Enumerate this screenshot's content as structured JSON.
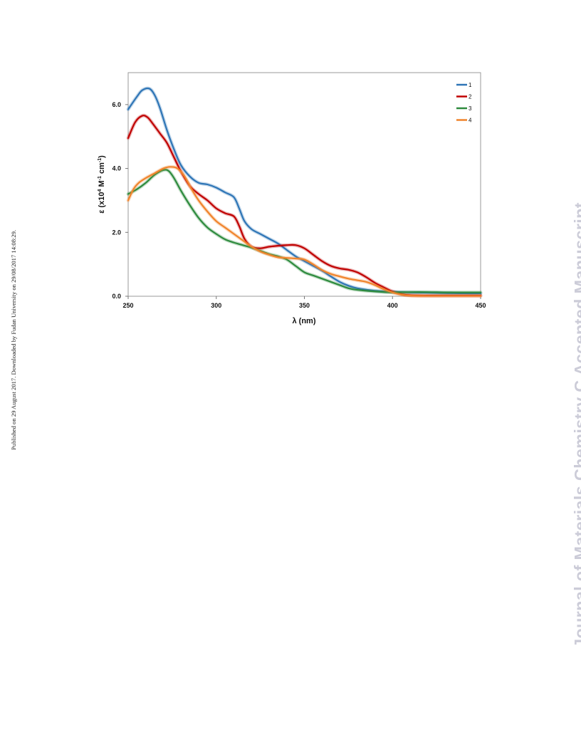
{
  "side_note": "Published on 29 August 2017. Downloaded by Fudan University on 29/08/2017 14:08:29.",
  "watermark": "Journal of Materials Chemistry C Accepted Manuscript",
  "chart_data": {
    "type": "line",
    "xlabel": "λ (nm)",
    "ylabel_parts": {
      "base": "ε (x10",
      "exp1": "4",
      "mid": " M",
      "exp2": "-1",
      "mid2": " cm",
      "exp3": "-1",
      "end": ")"
    },
    "xlim": [
      250,
      450
    ],
    "ylim": [
      0,
      7.0
    ],
    "xticks": [
      250,
      300,
      350,
      400,
      450
    ],
    "xtick_labels": [
      "250",
      "300",
      "350",
      "400",
      "450"
    ],
    "yticks": [
      0,
      2,
      4,
      6
    ],
    "ytick_labels": [
      "0.0",
      "2.0",
      "4.0",
      "6.0"
    ],
    "grid": false,
    "legend_position": "top-right",
    "series": [
      {
        "name": "1",
        "color": "#2e75b6",
        "x": [
          250,
          255,
          258,
          262,
          265,
          268,
          272,
          276,
          280,
          285,
          290,
          295,
          300,
          305,
          310,
          313,
          316,
          320,
          325,
          330,
          335,
          340,
          345,
          350,
          355,
          360,
          365,
          370,
          375,
          380,
          390,
          400,
          410,
          420,
          430,
          440,
          450
        ],
        "y": [
          5.85,
          6.25,
          6.45,
          6.5,
          6.3,
          5.9,
          5.2,
          4.6,
          4.1,
          3.75,
          3.55,
          3.5,
          3.4,
          3.25,
          3.1,
          2.75,
          2.35,
          2.1,
          1.95,
          1.8,
          1.65,
          1.45,
          1.25,
          1.1,
          0.95,
          0.8,
          0.62,
          0.45,
          0.33,
          0.25,
          0.17,
          0.14,
          0.12,
          0.11,
          0.1,
          0.09,
          0.09
        ]
      },
      {
        "name": "2",
        "color": "#c00000",
        "x": [
          250,
          254,
          258,
          261,
          264,
          268,
          272,
          276,
          280,
          285,
          290,
          295,
          300,
          305,
          310,
          313,
          316,
          320,
          325,
          330,
          335,
          340,
          345,
          350,
          355,
          360,
          365,
          370,
          375,
          380,
          385,
          390,
          395,
          400,
          405,
          410,
          420,
          430,
          440,
          450
        ],
        "y": [
          4.95,
          5.45,
          5.65,
          5.6,
          5.4,
          5.1,
          4.8,
          4.35,
          3.9,
          3.45,
          3.2,
          3.0,
          2.75,
          2.6,
          2.5,
          2.2,
          1.8,
          1.55,
          1.5,
          1.55,
          1.58,
          1.6,
          1.6,
          1.5,
          1.3,
          1.1,
          0.95,
          0.87,
          0.83,
          0.75,
          0.6,
          0.42,
          0.28,
          0.15,
          0.07,
          0.03,
          0.02,
          0.02,
          0.02,
          0.02
        ]
      },
      {
        "name": "3",
        "color": "#2e8b3e",
        "x": [
          250,
          255,
          260,
          265,
          270,
          273,
          276,
          280,
          285,
          290,
          295,
          300,
          305,
          310,
          315,
          320,
          325,
          330,
          335,
          340,
          345,
          350,
          355,
          360,
          365,
          370,
          375,
          380,
          390,
          400,
          410,
          420,
          430,
          440,
          450
        ],
        "y": [
          3.2,
          3.35,
          3.55,
          3.8,
          3.95,
          3.92,
          3.7,
          3.3,
          2.85,
          2.45,
          2.15,
          1.95,
          1.78,
          1.68,
          1.6,
          1.52,
          1.42,
          1.32,
          1.25,
          1.15,
          0.95,
          0.75,
          0.65,
          0.55,
          0.45,
          0.35,
          0.25,
          0.2,
          0.15,
          0.12,
          0.13,
          0.13,
          0.12,
          0.12,
          0.12
        ]
      },
      {
        "name": "4",
        "color": "#f0842c",
        "x": [
          250,
          253,
          256,
          260,
          265,
          270,
          274,
          278,
          282,
          286,
          290,
          295,
          300,
          305,
          310,
          315,
          320,
          325,
          330,
          335,
          340,
          345,
          350,
          355,
          360,
          365,
          370,
          375,
          380,
          385,
          390,
          395,
          400,
          405,
          410,
          420,
          430,
          440,
          450
        ],
        "y": [
          3.0,
          3.35,
          3.55,
          3.7,
          3.85,
          4.0,
          4.05,
          4.0,
          3.75,
          3.35,
          3.0,
          2.65,
          2.35,
          2.15,
          1.95,
          1.75,
          1.55,
          1.4,
          1.3,
          1.22,
          1.2,
          1.18,
          1.15,
          1.0,
          0.82,
          0.7,
          0.62,
          0.55,
          0.5,
          0.45,
          0.35,
          0.22,
          0.12,
          0.05,
          0.02,
          0.01,
          0.01,
          0.01,
          0.01
        ]
      }
    ]
  }
}
